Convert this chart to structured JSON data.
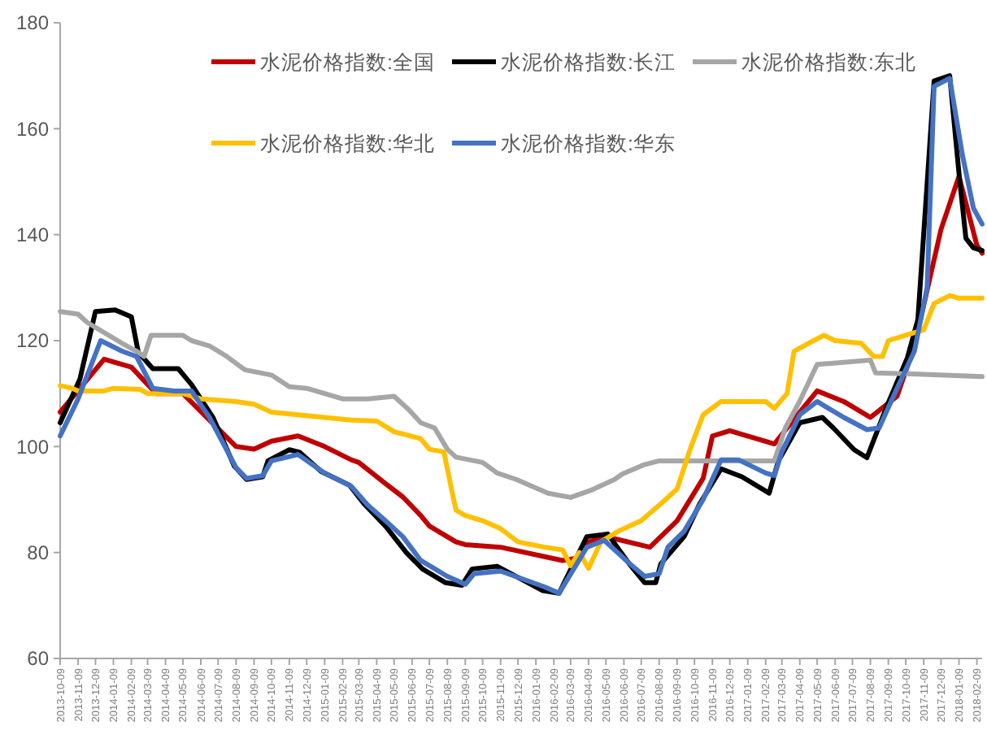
{
  "chart_data": {
    "type": "line",
    "ylim": [
      60,
      180
    ],
    "yticks": [
      60,
      80,
      100,
      120,
      140,
      160,
      180
    ],
    "xlim": [
      "2013-10-09",
      "2018-02-18"
    ],
    "xticks": [
      "2013-10-09",
      "2013-11-09",
      "2013-12-09",
      "2014-01-09",
      "2014-02-09",
      "2014-03-09",
      "2014-04-09",
      "2014-05-09",
      "2014-06-09",
      "2014-07-09",
      "2014-08-09",
      "2014-09-09",
      "2014-10-09",
      "2014-11-09",
      "2014-12-09",
      "2015-01-09",
      "2015-02-09",
      "2015-03-09",
      "2015-04-09",
      "2015-05-09",
      "2015-06-09",
      "2015-07-09",
      "2015-08-09",
      "2015-09-09",
      "2015-10-09",
      "2015-11-09",
      "2015-12-09",
      "2016-01-09",
      "2016-02-09",
      "2016-03-09",
      "2016-04-09",
      "2016-05-09",
      "2016-06-09",
      "2016-07-09",
      "2016-08-09",
      "2016-09-09",
      "2016-10-09",
      "2016-11-09",
      "2016-12-09",
      "2017-01-09",
      "2017-02-09",
      "2017-03-09",
      "2017-04-09",
      "2017-05-09",
      "2017-06-09",
      "2017-07-09",
      "2017-08-09",
      "2017-09-09",
      "2017-10-09",
      "2017-11-09",
      "2017-12-09",
      "2018-01-09",
      "2018-02-09"
    ],
    "grid": false,
    "legend": "top",
    "line_style": "solid",
    "series": [
      {
        "name": "水泥价格指数:全国",
        "color": "#c00000",
        "x": [
          "2013-10-09",
          "2013-12-24",
          "2014-02-09",
          "2014-03-24",
          "2014-05-09",
          "2014-06-24",
          "2014-08-09",
          "2014-09-09",
          "2014-10-09",
          "2014-11-24",
          "2015-01-09",
          "2015-02-24",
          "2015-03-09",
          "2015-04-24",
          "2015-05-24",
          "2015-06-24",
          "2015-07-09",
          "2015-08-24",
          "2015-09-09",
          "2015-11-09",
          "2016-02-24",
          "2016-03-24",
          "2016-04-09",
          "2016-05-09",
          "2016-07-24",
          "2016-09-09",
          "2016-10-24",
          "2016-11-09",
          "2016-12-09",
          "2017-02-24",
          "2017-04-09",
          "2017-05-09",
          "2017-06-24",
          "2017-08-09",
          "2017-09-24",
          "2017-10-24",
          "2017-12-09",
          "2018-01-09",
          "2018-02-09",
          "2018-02-18"
        ],
        "values": [
          106.5,
          116.5,
          115,
          110,
          110,
          105,
          100,
          99.5,
          101,
          102,
          100,
          97.5,
          97,
          93,
          90.5,
          87,
          85,
          82,
          81.5,
          81,
          78.5,
          79,
          82,
          83,
          81,
          86,
          94,
          102,
          103,
          100.5,
          106.5,
          110.5,
          108.5,
          105.5,
          109.5,
          119,
          141,
          151,
          138,
          136.5
        ]
      },
      {
        "name": "水泥价格指数:长江",
        "color": "#000000",
        "x": [
          "2013-10-09",
          "2013-11-12",
          "2013-12-09",
          "2014-01-12",
          "2014-02-09",
          "2014-02-21",
          "2014-03-18",
          "2014-05-01",
          "2014-05-24",
          "2014-06-30",
          "2014-08-06",
          "2014-08-27",
          "2014-09-24",
          "2014-10-03",
          "2014-11-09",
          "2014-11-27",
          "2015-01-03",
          "2015-02-21",
          "2015-03-18",
          "2015-04-24",
          "2015-05-30",
          "2015-06-27",
          "2015-08-06",
          "2015-09-03",
          "2015-09-21",
          "2015-11-03",
          "2016-01-21",
          "2016-02-18",
          "2016-04-06",
          "2016-05-12",
          "2016-06-18",
          "2016-07-15",
          "2016-08-03",
          "2016-08-12",
          "2016-09-21",
          "2016-10-18",
          "2016-11-24",
          "2016-12-30",
          "2017-02-15",
          "2017-03-03",
          "2017-04-09",
          "2017-05-18",
          "2017-06-06",
          "2017-07-12",
          "2017-08-03",
          "2017-09-06",
          "2017-10-12",
          "2017-10-30",
          "2017-11-27",
          "2017-12-24",
          "2018-01-09",
          "2018-01-21",
          "2018-02-03",
          "2018-02-18"
        ],
        "values": [
          104.5,
          112.7,
          125.5,
          125.8,
          124.5,
          117.8,
          114.7,
          114.7,
          111.7,
          105.5,
          96.3,
          93.8,
          94.3,
          97.3,
          99.4,
          98.9,
          95.3,
          92.7,
          89.2,
          85,
          80,
          76.9,
          74.3,
          73.8,
          76.9,
          77.4,
          72.8,
          72.3,
          83,
          83.5,
          77.9,
          74.3,
          74.3,
          77.9,
          83,
          89.2,
          95.8,
          94.3,
          91.2,
          97.3,
          104.5,
          105.5,
          103.5,
          99.4,
          97.9,
          107.5,
          116.8,
          124,
          169,
          170,
          151.6,
          139.3,
          137.5,
          137
        ]
      },
      {
        "name": "水泥价格指数:东北",
        "color": "#a6a6a6",
        "x": [
          "2013-10-09",
          "2013-11-09",
          "2013-11-24",
          "2013-12-09",
          "2014-01-24",
          "2014-02-18",
          "2014-03-03",
          "2014-03-15",
          "2014-05-09",
          "2014-05-24",
          "2014-06-24",
          "2014-07-24",
          "2014-08-24",
          "2014-10-09",
          "2014-11-09",
          "2014-12-09",
          "2015-01-09",
          "2015-02-09",
          "2015-03-24",
          "2015-05-09",
          "2015-06-03",
          "2015-06-24",
          "2015-07-18",
          "2015-08-09",
          "2015-08-24",
          "2015-10-09",
          "2015-11-03",
          "2015-12-06",
          "2016-01-30",
          "2016-03-09",
          "2016-04-12",
          "2016-05-24",
          "2016-06-06",
          "2016-07-12",
          "2016-08-09",
          "2017-02-24",
          "2017-03-15",
          "2017-04-09",
          "2017-05-09",
          "2017-08-09",
          "2017-08-18",
          "2017-10-21",
          "2018-02-18"
        ],
        "values": [
          125.5,
          125,
          123.5,
          122.5,
          119.5,
          118,
          117,
          121,
          121,
          120,
          119,
          117,
          114.5,
          113.5,
          111.3,
          111,
          110,
          109,
          109,
          109.5,
          107,
          104.5,
          103.5,
          99.5,
          98,
          97,
          95,
          93.8,
          91.2,
          90.4,
          91.7,
          93.8,
          94.8,
          96.5,
          97.3,
          97.3,
          103.5,
          108.6,
          115.5,
          116.3,
          113.9,
          113.7,
          113.2
        ]
      },
      {
        "name": "水泥价格指数:华北",
        "color": "#ffc000",
        "x": [
          "2013-10-09",
          "2013-10-30",
          "2013-11-09",
          "2013-12-24",
          "2014-01-09",
          "2014-02-24",
          "2014-03-09",
          "2014-04-09",
          "2014-05-09",
          "2014-06-09",
          "2014-08-09",
          "2014-09-09",
          "2014-10-09",
          "2014-11-24",
          "2015-01-09",
          "2015-02-24",
          "2015-04-09",
          "2015-05-09",
          "2015-06-24",
          "2015-07-09",
          "2015-08-03",
          "2015-08-18",
          "2015-08-24",
          "2015-09-09",
          "2015-10-09",
          "2015-11-09",
          "2015-12-09",
          "2016-01-24",
          "2016-02-24",
          "2016-03-09",
          "2016-03-24",
          "2016-04-09",
          "2016-04-30",
          "2016-05-30",
          "2016-07-09",
          "2016-08-15",
          "2016-09-09",
          "2016-10-03",
          "2016-10-24",
          "2016-11-24",
          "2017-01-09",
          "2017-02-09",
          "2017-02-24",
          "2017-03-18",
          "2017-03-30",
          "2017-04-24",
          "2017-05-21",
          "2017-06-09",
          "2017-07-24",
          "2017-08-15",
          "2017-08-30",
          "2017-09-09",
          "2017-10-09",
          "2017-11-09",
          "2017-11-27",
          "2017-12-24",
          "2018-01-09",
          "2018-02-18"
        ],
        "values": [
          111.5,
          111,
          110.5,
          110.5,
          111,
          110.8,
          110,
          110,
          110,
          109,
          108.5,
          108,
          106.5,
          106,
          105.5,
          105,
          104.8,
          102.8,
          101.5,
          99.5,
          99,
          91,
          88,
          87,
          86,
          84.5,
          82,
          81,
          80.5,
          77.5,
          80,
          77,
          82,
          84,
          86,
          89.5,
          92,
          100,
          106,
          108.5,
          108.5,
          108.5,
          107.2,
          110,
          118,
          119.5,
          121,
          120,
          119.5,
          117,
          117,
          120,
          121,
          122,
          127,
          128.5,
          128,
          128
        ]
      },
      {
        "name": "水泥价格指数:华东",
        "color": "#4472c4",
        "x": [
          "2013-10-09",
          "2013-11-09",
          "2013-12-18",
          "2014-01-24",
          "2014-02-18",
          "2014-03-18",
          "2014-04-24",
          "2014-05-24",
          "2014-06-24",
          "2014-08-09",
          "2014-08-27",
          "2014-09-24",
          "2014-10-09",
          "2014-11-24",
          "2015-01-09",
          "2015-02-24",
          "2015-03-24",
          "2015-04-24",
          "2015-05-24",
          "2015-06-24",
          "2015-08-09",
          "2015-09-09",
          "2015-09-24",
          "2015-11-09",
          "2016-01-24",
          "2016-02-18",
          "2016-04-06",
          "2016-05-06",
          "2016-06-18",
          "2016-07-15",
          "2016-08-09",
          "2016-08-24",
          "2016-09-21",
          "2016-10-24",
          "2016-11-24",
          "2016-12-24",
          "2017-02-09",
          "2017-02-24",
          "2017-03-09",
          "2017-04-09",
          "2017-05-09",
          "2017-06-24",
          "2017-08-03",
          "2017-08-24",
          "2017-09-24",
          "2017-10-24",
          "2017-11-15",
          "2017-11-27",
          "2017-12-24",
          "2018-01-15",
          "2018-02-03",
          "2018-02-18"
        ],
        "values": [
          102,
          109,
          120,
          118,
          117,
          111,
          110.5,
          110.5,
          105.5,
          96,
          94,
          94.5,
          97.3,
          98.5,
          95,
          92.5,
          89,
          86,
          83,
          78.5,
          75.5,
          74,
          76,
          76.5,
          73.5,
          72.3,
          81,
          82.3,
          78,
          75.5,
          76,
          81,
          84,
          90,
          97.5,
          97.5,
          95,
          94.5,
          99,
          106,
          108.5,
          105.5,
          103.2,
          103.5,
          111,
          118,
          130,
          168,
          169.5,
          155,
          145,
          142
        ]
      }
    ]
  }
}
